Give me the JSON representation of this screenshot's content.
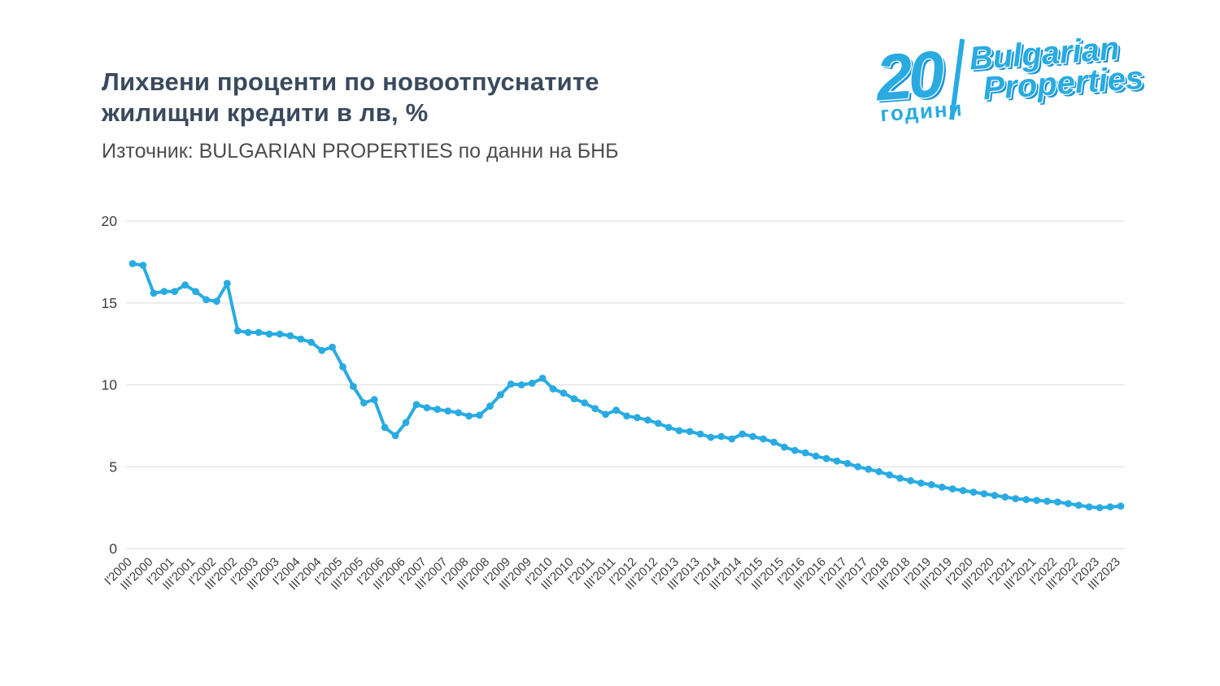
{
  "header": {
    "title_line1": "Лихвени проценти по новоотпуснатите",
    "title_line2": "жилищни кредити в лв, %",
    "source": "Източник: BULGARIAN PROPERTIES по данни на БНБ"
  },
  "logo": {
    "years_number": "20",
    "years_word": "години",
    "brand_line1": "Bulgarian",
    "brand_line2": "Properties",
    "color": "#29abe2"
  },
  "chart_data": {
    "type": "line",
    "title": "Лихвени проценти по новоотпуснатите жилищни кредити в лв, %",
    "source": "Източник: BULGARIAN PROPERTIES по данни на БНБ",
    "unit": "%",
    "ylim": [
      0,
      20
    ],
    "yticks": [
      0,
      5,
      10,
      15,
      20
    ],
    "grid": true,
    "legend_position": "none",
    "line_color": "#29abe2",
    "grid_color": "#e2e2e2",
    "tick_label_color": "#3d3d3d",
    "points_per_tick": 2,
    "x_tick_labels": [
      "I'2000",
      "III'2000",
      "I'2001",
      "III'2001",
      "I'2002",
      "III'2002",
      "I'2003",
      "III'2003",
      "I'2004",
      "III'2004",
      "I'2005",
      "III'2005",
      "I'2006",
      "III'2006",
      "I'2007",
      "III'2007",
      "I'2008",
      "III'2008",
      "I'2009",
      "III'2009",
      "I'2010",
      "III'2010",
      "I'2011",
      "III'2011",
      "I'2012",
      "III'2012",
      "I'2013",
      "III'2013",
      "I'2014",
      "III'2014",
      "I'2015",
      "III'2015",
      "I'2016",
      "III'2016",
      "I'2017",
      "III'2017",
      "I'2018",
      "III'2018",
      "I'2019",
      "III'2019",
      "I'2020",
      "III'2020",
      "I'2021",
      "III'2021",
      "I'2022",
      "III'2022",
      "I'2023",
      "III'2023"
    ],
    "values": [
      17.4,
      17.3,
      15.6,
      15.7,
      15.7,
      16.1,
      15.7,
      15.2,
      15.1,
      16.2,
      13.3,
      13.2,
      13.2,
      13.1,
      13.1,
      13.0,
      12.8,
      12.6,
      12.1,
      12.3,
      11.1,
      9.9,
      8.9,
      9.1,
      7.4,
      6.9,
      7.7,
      8.8,
      8.6,
      8.5,
      8.4,
      8.3,
      8.1,
      8.15,
      8.7,
      9.4,
      10.05,
      10.0,
      10.1,
      10.4,
      9.75,
      9.5,
      9.15,
      8.9,
      8.55,
      8.2,
      8.45,
      8.1,
      8.0,
      7.85,
      7.65,
      7.4,
      7.2,
      7.15,
      7.0,
      6.8,
      6.85,
      6.7,
      7.0,
      6.85,
      6.7,
      6.5,
      6.2,
      6.0,
      5.85,
      5.65,
      5.5,
      5.35,
      5.2,
      5.0,
      4.85,
      4.7,
      4.5,
      4.3,
      4.15,
      4.0,
      3.9,
      3.75,
      3.65,
      3.55,
      3.45,
      3.35,
      3.25,
      3.15,
      3.05,
      3.0,
      2.95,
      2.9,
      2.85,
      2.75,
      2.65,
      2.55,
      2.5,
      2.55,
      2.6
    ]
  }
}
